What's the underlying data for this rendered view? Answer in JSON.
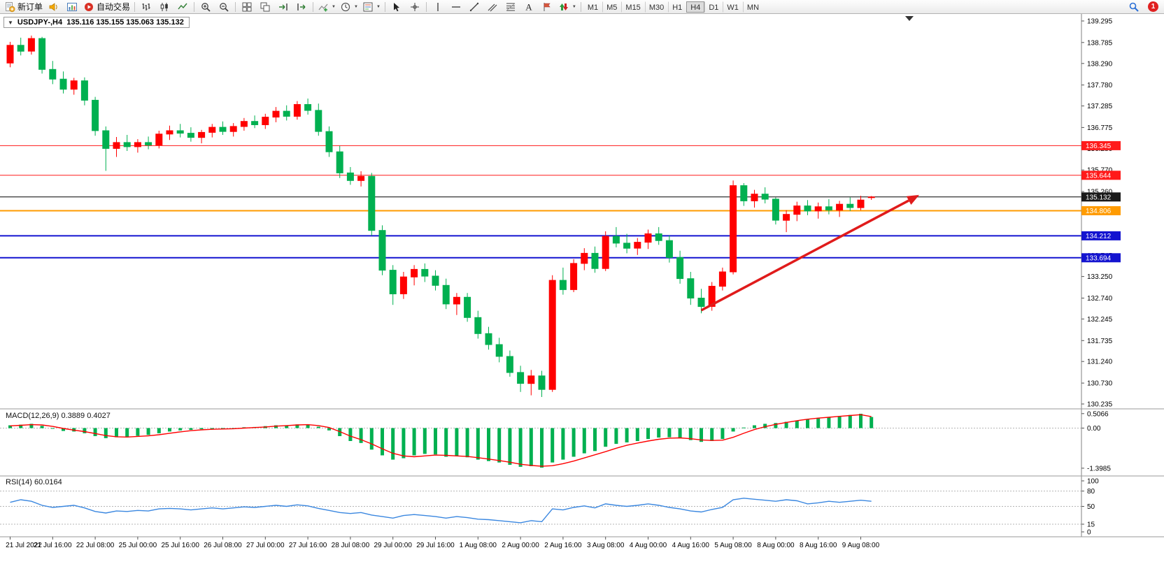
{
  "app": {
    "toolbar": {
      "groups": [
        {
          "items": [
            {
              "name": "new-order-button",
              "icon": "new-order-icon",
              "label": "新订单"
            },
            {
              "name": "alerts-button",
              "icon": "horn-icon"
            },
            {
              "name": "market-watch-button",
              "icon": "charts-icon"
            },
            {
              "name": "autotrading-button",
              "icon": "autotrading-icon",
              "label": "自动交易"
            }
          ]
        },
        {
          "items": [
            {
              "name": "bar-chart-button",
              "icon": "bar-chart-icon"
            },
            {
              "name": "candlestick-chart-button",
              "icon": "candlestick-icon"
            },
            {
              "name": "line-chart-button",
              "icon": "line-chart-icon"
            }
          ]
        },
        {
          "items": [
            {
              "name": "zoom-in-button",
              "icon": "zoom-in-icon"
            },
            {
              "name": "zoom-out-button",
              "icon": "zoom-out-icon"
            }
          ]
        },
        {
          "items": [
            {
              "name": "tile-windows-button",
              "icon": "tile-windows-icon"
            },
            {
              "name": "cascade-windows-button",
              "icon": "cascade-icon"
            },
            {
              "name": "auto-scroll-button",
              "icon": "auto-scroll-icon"
            },
            {
              "name": "chart-shift-button",
              "icon": "chart-shift-icon"
            }
          ]
        },
        {
          "items": [
            {
              "name": "indicators-button",
              "icon": "indicators-icon",
              "dropdown": true
            },
            {
              "name": "periods-button",
              "icon": "periods-icon",
              "dropdown": true
            },
            {
              "name": "templates-button",
              "icon": "templates-icon",
              "dropdown": true
            }
          ]
        },
        {
          "items": [
            {
              "name": "cursor-button",
              "icon": "cursor-icon"
            },
            {
              "name": "crosshair-button",
              "icon": "crosshair-icon"
            }
          ]
        },
        {
          "items": [
            {
              "name": "vertical-line-button",
              "icon": "vertical-line-icon"
            },
            {
              "name": "horizontal-line-button",
              "icon": "horizontal-line-icon"
            },
            {
              "name": "trendline-button",
              "icon": "trendline-icon"
            },
            {
              "name": "equidistant-channel-button",
              "icon": "channel-icon"
            },
            {
              "name": "fibonacci-button",
              "icon": "fibonacci-icon"
            },
            {
              "name": "text-button",
              "icon": "text-icon"
            },
            {
              "name": "text-label-button",
              "icon": "label-icon"
            },
            {
              "name": "arrows-button",
              "icon": "arrows-icon",
              "dropdown": true
            }
          ]
        }
      ],
      "timeframes": {
        "items": [
          "M1",
          "M5",
          "M15",
          "M30",
          "H1",
          "H4",
          "D1",
          "W1",
          "MN"
        ],
        "active": "H4"
      },
      "right": {
        "notification_count": "1"
      }
    }
  },
  "chart": {
    "title_arrow": "▼",
    "symbol_title": "USDJPY-,H4  135.116 135.155 135.063 135.132",
    "price_range": {
      "max": 139.295,
      "min": 130.235
    },
    "price_axis_ticks": [
      "139.295",
      "138.785",
      "138.290",
      "137.780",
      "137.285",
      "136.775",
      "136.280",
      "135.770",
      "135.260",
      "134.765",
      "134.255",
      "133.745",
      "133.250",
      "132.740",
      "132.245",
      "131.735",
      "131.240",
      "130.730",
      "130.235"
    ],
    "bid": {
      "label": "135.132",
      "price": 135.132,
      "line_color": "#000000",
      "badge_bg": "#1a1a1a"
    },
    "hlines": [
      {
        "name": "resistance-line-1",
        "price": 136.345,
        "label": "136.345",
        "color": "#ff1a1a",
        "width": 1
      },
      {
        "name": "resistance-line-2",
        "price": 135.644,
        "label": "135.644",
        "color": "#ff1a1a",
        "width": 1
      },
      {
        "name": "pivot-line-orange",
        "price": 134.806,
        "label": "134.806",
        "color": "#ff9b00",
        "width": 2
      },
      {
        "name": "support-line-1",
        "price": 134.212,
        "label": "134.212",
        "color": "#1414d0",
        "width": 2
      },
      {
        "name": "support-line-2",
        "price": 133.694,
        "label": "133.694",
        "color": "#1414d0",
        "width": 2
      }
    ],
    "annotations": {
      "trend_arrow": {
        "color": "#e01b1b",
        "width": 3.5,
        "from_candle": 65,
        "from_price": 132.45,
        "to_candle": 85.5,
        "to_price": 135.18
      }
    }
  },
  "chart_data": {
    "type": "candlestick",
    "symbol": "USDJPY-",
    "timeframe": "H4",
    "up_color": "#ff0000",
    "down_color": "#00b050",
    "label_every_n_candles": 4,
    "time_labels": [
      "21 Jul 2022",
      "21 Jul 16:00",
      "22 Jul 08:00",
      "25 Jul 00:00",
      "25 Jul 16:00",
      "26 Jul 08:00",
      "27 Jul 00:00",
      "27 Jul 16:00",
      "28 Jul 08:00",
      "29 Jul 00:00",
      "29 Jul 16:00",
      "1 Aug 08:00",
      "2 Aug 00:00",
      "2 Aug 16:00",
      "3 Aug 08:00",
      "4 Aug 00:00",
      "4 Aug 16:00",
      "5 Aug 08:00",
      "8 Aug 00:00",
      "8 Aug 16:00",
      "9 Aug 08:00"
    ],
    "candles_ohlc": [
      [
        138.3,
        138.8,
        138.2,
        138.72
      ],
      [
        138.72,
        138.9,
        138.48,
        138.58
      ],
      [
        138.58,
        138.95,
        138.5,
        138.88
      ],
      [
        138.88,
        138.92,
        138.05,
        138.15
      ],
      [
        138.15,
        138.35,
        137.8,
        137.92
      ],
      [
        137.92,
        138.1,
        137.58,
        137.68
      ],
      [
        137.68,
        137.95,
        137.55,
        137.88
      ],
      [
        137.88,
        137.96,
        137.3,
        137.42
      ],
      [
        137.42,
        137.5,
        136.58,
        136.7
      ],
      [
        136.7,
        136.8,
        135.75,
        136.28
      ],
      [
        136.28,
        136.55,
        136.08,
        136.42
      ],
      [
        136.42,
        136.6,
        136.22,
        136.32
      ],
      [
        136.32,
        136.5,
        136.18,
        136.42
      ],
      [
        136.42,
        136.56,
        136.26,
        136.36
      ],
      [
        136.36,
        136.7,
        136.28,
        136.62
      ],
      [
        136.62,
        136.82,
        136.48,
        136.7
      ],
      [
        136.7,
        136.86,
        136.54,
        136.64
      ],
      [
        136.64,
        136.78,
        136.44,
        136.54
      ],
      [
        136.54,
        136.72,
        136.4,
        136.66
      ],
      [
        136.66,
        136.86,
        136.54,
        136.78
      ],
      [
        136.78,
        136.92,
        136.6,
        136.68
      ],
      [
        136.68,
        136.88,
        136.56,
        136.8
      ],
      [
        136.8,
        137.0,
        136.7,
        136.92
      ],
      [
        136.92,
        137.06,
        136.76,
        136.84
      ],
      [
        136.84,
        137.1,
        136.74,
        137.02
      ],
      [
        137.02,
        137.26,
        136.9,
        137.16
      ],
      [
        137.16,
        137.3,
        136.94,
        137.04
      ],
      [
        137.04,
        137.4,
        136.96,
        137.32
      ],
      [
        137.32,
        137.46,
        137.08,
        137.18
      ],
      [
        137.18,
        137.34,
        136.58,
        136.68
      ],
      [
        136.68,
        136.8,
        136.08,
        136.2
      ],
      [
        136.2,
        136.34,
        135.58,
        135.7
      ],
      [
        135.7,
        135.84,
        135.42,
        135.52
      ],
      [
        135.52,
        135.74,
        135.38,
        135.62
      ],
      [
        135.62,
        135.7,
        134.22,
        134.34
      ],
      [
        134.34,
        134.46,
        133.28,
        133.4
      ],
      [
        133.4,
        133.52,
        132.58,
        132.84
      ],
      [
        132.84,
        133.36,
        132.72,
        133.24
      ],
      [
        133.24,
        133.52,
        133.04,
        133.42
      ],
      [
        133.42,
        133.56,
        133.12,
        133.26
      ],
      [
        133.26,
        133.4,
        132.92,
        133.04
      ],
      [
        133.04,
        133.2,
        132.48,
        132.6
      ],
      [
        132.6,
        132.86,
        132.34,
        132.76
      ],
      [
        132.76,
        132.86,
        132.18,
        132.28
      ],
      [
        132.28,
        132.44,
        131.78,
        131.9
      ],
      [
        131.9,
        132.06,
        131.52,
        131.64
      ],
      [
        131.64,
        131.8,
        131.22,
        131.36
      ],
      [
        131.36,
        131.5,
        130.88,
        130.98
      ],
      [
        130.98,
        131.14,
        130.52,
        130.72
      ],
      [
        130.72,
        131.04,
        130.44,
        130.9
      ],
      [
        130.9,
        131.02,
        130.4,
        130.58
      ],
      [
        130.58,
        133.28,
        130.52,
        133.16
      ],
      [
        133.16,
        133.46,
        132.82,
        132.94
      ],
      [
        132.94,
        133.66,
        132.88,
        133.56
      ],
      [
        133.56,
        133.92,
        133.4,
        133.8
      ],
      [
        133.8,
        133.96,
        133.34,
        133.44
      ],
      [
        133.44,
        134.32,
        133.38,
        134.2
      ],
      [
        134.2,
        134.42,
        133.94,
        134.04
      ],
      [
        134.04,
        134.26,
        133.8,
        133.92
      ],
      [
        133.92,
        134.16,
        133.76,
        134.06
      ],
      [
        134.06,
        134.36,
        133.9,
        134.26
      ],
      [
        134.26,
        134.42,
        134.0,
        134.1
      ],
      [
        134.1,
        134.22,
        133.58,
        133.7
      ],
      [
        133.7,
        133.86,
        133.08,
        133.2
      ],
      [
        133.2,
        133.36,
        132.58,
        132.74
      ],
      [
        132.74,
        132.96,
        132.38,
        132.54
      ],
      [
        132.54,
        133.12,
        132.44,
        133.02
      ],
      [
        133.02,
        133.46,
        132.92,
        133.36
      ],
      [
        133.36,
        135.52,
        133.3,
        135.4
      ],
      [
        135.4,
        135.46,
        134.92,
        135.04
      ],
      [
        135.04,
        135.3,
        134.88,
        135.2
      ],
      [
        135.2,
        135.36,
        134.98,
        135.08
      ],
      [
        135.08,
        135.12,
        134.48,
        134.58
      ],
      [
        134.58,
        134.82,
        134.3,
        134.72
      ],
      [
        134.72,
        135.02,
        134.56,
        134.92
      ],
      [
        134.92,
        135.06,
        134.7,
        134.8
      ],
      [
        134.8,
        135.0,
        134.62,
        134.9
      ],
      [
        134.9,
        135.08,
        134.72,
        134.82
      ],
      [
        134.82,
        135.04,
        134.66,
        134.96
      ],
      [
        134.96,
        135.12,
        134.8,
        134.88
      ],
      [
        134.88,
        135.16,
        134.82,
        135.06
      ],
      [
        135.116,
        135.155,
        135.063,
        135.132
      ]
    ],
    "macd": {
      "name": "MACD(12,26,9)",
      "value_main": "0.3889",
      "value_signal": "0.4027",
      "axis_ticks": [
        "0.5066",
        "0.00",
        "-1.3985"
      ],
      "scale_max": 0.55,
      "scale_min": -1.45,
      "histogram_color": "#00b050",
      "signal_color": "#ff0000",
      "histogram": [
        0.1,
        0.12,
        0.15,
        0.08,
        -0.02,
        -0.1,
        -0.12,
        -0.18,
        -0.28,
        -0.35,
        -0.32,
        -0.3,
        -0.27,
        -0.24,
        -0.18,
        -0.12,
        -0.08,
        -0.06,
        -0.04,
        -0.02,
        -0.02,
        0.0,
        0.03,
        0.04,
        0.07,
        0.1,
        0.1,
        0.13,
        0.12,
        0.05,
        -0.08,
        -0.28,
        -0.45,
        -0.52,
        -0.75,
        -0.95,
        -1.1,
        -1.05,
        -0.95,
        -0.9,
        -0.92,
        -1.0,
        -0.98,
        -1.02,
        -1.1,
        -1.15,
        -1.2,
        -1.28,
        -1.35,
        -1.33,
        -1.38,
        -1.2,
        -1.1,
        -1.0,
        -0.88,
        -0.8,
        -0.65,
        -0.55,
        -0.5,
        -0.45,
        -0.38,
        -0.33,
        -0.32,
        -0.35,
        -0.42,
        -0.48,
        -0.45,
        -0.38,
        -0.12,
        0.02,
        0.1,
        0.15,
        0.18,
        0.22,
        0.26,
        0.3,
        0.34,
        0.38,
        0.42,
        0.46,
        0.5,
        0.39
      ],
      "signal": [
        0.08,
        0.1,
        0.12,
        0.11,
        0.06,
        -0.01,
        -0.07,
        -0.12,
        -0.19,
        -0.26,
        -0.3,
        -0.31,
        -0.29,
        -0.27,
        -0.23,
        -0.18,
        -0.13,
        -0.09,
        -0.06,
        -0.04,
        -0.03,
        -0.02,
        0.0,
        0.02,
        0.04,
        0.07,
        0.09,
        0.11,
        0.12,
        0.09,
        0.02,
        -0.12,
        -0.28,
        -0.4,
        -0.55,
        -0.72,
        -0.88,
        -0.97,
        -1.0,
        -0.97,
        -0.94,
        -0.95,
        -0.97,
        -0.99,
        -1.03,
        -1.08,
        -1.13,
        -1.19,
        -1.26,
        -1.3,
        -1.33,
        -1.31,
        -1.24,
        -1.15,
        -1.04,
        -0.93,
        -0.82,
        -0.7,
        -0.6,
        -0.52,
        -0.45,
        -0.39,
        -0.35,
        -0.34,
        -0.37,
        -0.41,
        -0.43,
        -0.42,
        -0.32,
        -0.18,
        -0.05,
        0.05,
        0.13,
        0.2,
        0.26,
        0.31,
        0.35,
        0.38,
        0.41,
        0.44,
        0.47,
        0.4
      ]
    },
    "rsi": {
      "name": "RSI(14)",
      "value": "60.0164",
      "axis_ticks": [
        "100",
        "80",
        "50",
        "15",
        "0"
      ],
      "levels": [
        80,
        50,
        15
      ],
      "scale_max": 100,
      "scale_min": 0,
      "line_color": "#3a87e0",
      "values": [
        58,
        63,
        60,
        52,
        48,
        50,
        52,
        47,
        40,
        37,
        41,
        40,
        42,
        41,
        45,
        46,
        45,
        43,
        45,
        47,
        45,
        47,
        49,
        48,
        50,
        52,
        50,
        53,
        51,
        46,
        42,
        38,
        36,
        38,
        33,
        30,
        27,
        32,
        34,
        32,
        30,
        27,
        30,
        28,
        25,
        24,
        22,
        20,
        18,
        22,
        20,
        45,
        43,
        48,
        51,
        47,
        55,
        52,
        50,
        52,
        55,
        52,
        48,
        45,
        41,
        39,
        44,
        48,
        63,
        66,
        64,
        62,
        60,
        63,
        61,
        55,
        57,
        60,
        58,
        60,
        62,
        60.0164
      ]
    }
  }
}
